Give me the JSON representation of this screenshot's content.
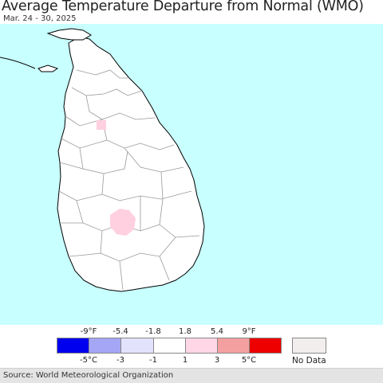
{
  "header": {
    "title": "Average Temperature Departure from Normal (WMO)",
    "date_range": "Mar. 24 - 30, 2025"
  },
  "map": {
    "colors": {
      "ocean": "#c8ffff",
      "land": "#ffffff",
      "outline": "#000000",
      "district_border": "#999999",
      "warm_patch": "#ffd0e0"
    }
  },
  "legend": {
    "fahrenheit_ticks": [
      "-9°F",
      "-5.4",
      "-1.8",
      "1.8",
      "5.4",
      "9°F"
    ],
    "celsius_ticks": [
      "-5°C",
      "-3",
      "-1",
      "1",
      "3",
      "5°C"
    ],
    "bins": [
      {
        "color": "#0000ee"
      },
      {
        "color": "#a6a6f6"
      },
      {
        "color": "#e2e2fc"
      },
      {
        "color": "#ffffff"
      },
      {
        "color": "#ffd6e6"
      },
      {
        "color": "#f4a0a0"
      },
      {
        "color": "#ee0000"
      }
    ],
    "no_data": {
      "label": "No Data",
      "color": "#f2eeee"
    }
  },
  "footer": {
    "source": "Source: World Meteorological Organization"
  }
}
